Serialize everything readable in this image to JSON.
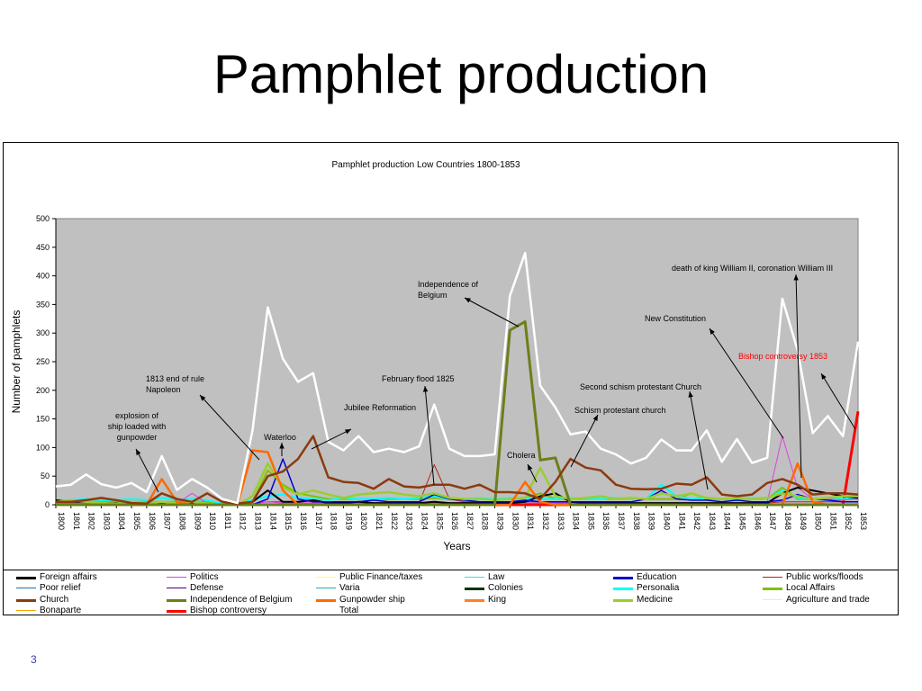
{
  "slide": {
    "title": "Pamphlet production",
    "page_number": "3"
  },
  "chart_data": {
    "type": "line",
    "title": "Pamphlet production Low Countries 1800-1853",
    "xlabel": "Years",
    "ylabel": "Number of pamphlets",
    "ylim": [
      0,
      500
    ],
    "yticks": [
      0,
      50,
      100,
      150,
      200,
      250,
      300,
      350,
      400,
      450,
      500
    ],
    "plot_background": "#c0c0c0",
    "legend_position": "bottom",
    "x": [
      1800,
      1801,
      1802,
      1803,
      1804,
      1805,
      1806,
      1807,
      1808,
      1809,
      1810,
      1811,
      1812,
      1813,
      1814,
      1815,
      1816,
      1817,
      1818,
      1819,
      1820,
      1821,
      1822,
      1823,
      1824,
      1825,
      1826,
      1827,
      1828,
      1829,
      1830,
      1831,
      1832,
      1833,
      1834,
      1835,
      1836,
      1837,
      1838,
      1839,
      1840,
      1841,
      1842,
      1843,
      1844,
      1845,
      1846,
      1847,
      1848,
      1849,
      1850,
      1851,
      1852,
      1853
    ],
    "series": [
      {
        "name": "Total",
        "color": "#ffffff",
        "width": 2.5,
        "values": [
          32,
          35,
          53,
          36,
          30,
          38,
          22,
          85,
          26,
          45,
          30,
          10,
          3,
          130,
          345,
          255,
          215,
          230,
          110,
          95,
          120,
          92,
          98,
          92,
          102,
          175,
          98,
          85,
          85,
          88,
          365,
          440,
          208,
          170,
          123,
          128,
          98,
          88,
          72,
          82,
          114,
          95,
          95,
          130,
          75,
          115,
          73,
          82,
          360,
          270,
          125,
          155,
          120,
          285
        ]
      },
      {
        "name": "Church",
        "color": "#8b3a0f",
        "width": 2.5,
        "values": [
          5,
          5,
          8,
          12,
          8,
          3,
          2,
          20,
          10,
          5,
          20,
          5,
          2,
          5,
          50,
          58,
          80,
          120,
          48,
          40,
          38,
          28,
          45,
          32,
          30,
          35,
          35,
          28,
          35,
          22,
          22,
          20,
          10,
          40,
          80,
          65,
          60,
          35,
          28,
          27,
          28,
          37,
          35,
          48,
          18,
          15,
          18,
          38,
          45,
          35,
          18,
          20,
          20,
          18
        ]
      },
      {
        "name": "Independence of Belgium",
        "color": "#6b7f1a",
        "width": 3,
        "values": [
          0,
          0,
          0,
          0,
          0,
          0,
          0,
          0,
          0,
          0,
          0,
          0,
          0,
          0,
          0,
          0,
          0,
          0,
          0,
          0,
          0,
          0,
          0,
          0,
          0,
          0,
          0,
          0,
          0,
          0,
          305,
          320,
          78,
          82,
          0,
          0,
          0,
          0,
          0,
          0,
          0,
          0,
          0,
          0,
          0,
          0,
          0,
          0,
          0,
          0,
          0,
          0,
          0,
          0
        ]
      },
      {
        "name": "Gunpowder ship",
        "color": "#ff6a00",
        "width": 2.5,
        "values": [
          0,
          0,
          0,
          0,
          0,
          0,
          0,
          45,
          5,
          0,
          0,
          0,
          0,
          95,
          92,
          25,
          0,
          0,
          0,
          0,
          0,
          0,
          0,
          0,
          0,
          0,
          0,
          0,
          0,
          0,
          0,
          40,
          5,
          0,
          0,
          0,
          0,
          0,
          0,
          0,
          0,
          0,
          0,
          0,
          0,
          0,
          0,
          0,
          0,
          72,
          5,
          0,
          0,
          0
        ]
      },
      {
        "name": "Medicine",
        "color": "#9acd32",
        "width": 2.5,
        "values": [
          5,
          8,
          5,
          3,
          2,
          5,
          3,
          5,
          3,
          5,
          2,
          0,
          0,
          15,
          72,
          30,
          18,
          25,
          18,
          12,
          18,
          20,
          22,
          18,
          15,
          20,
          12,
          10,
          10,
          8,
          10,
          12,
          65,
          15,
          10,
          12,
          15,
          10,
          12,
          10,
          20,
          15,
          20,
          12,
          10,
          12,
          10,
          12,
          20,
          15,
          10,
          12,
          15,
          15
        ]
      },
      {
        "name": "Education",
        "color": "#0000cc",
        "width": 1.5,
        "values": [
          0,
          0,
          0,
          0,
          0,
          0,
          0,
          0,
          0,
          0,
          0,
          0,
          0,
          0,
          10,
          80,
          10,
          5,
          5,
          5,
          5,
          8,
          5,
          5,
          5,
          18,
          10,
          8,
          5,
          5,
          5,
          8,
          5,
          5,
          5,
          5,
          5,
          5,
          5,
          10,
          25,
          10,
          8,
          8,
          5,
          8,
          5,
          5,
          8,
          18,
          10,
          8,
          5,
          5
        ]
      },
      {
        "name": "Foreign affairs",
        "color": "#000000",
        "width": 2,
        "values": [
          8,
          5,
          5,
          3,
          3,
          2,
          2,
          2,
          2,
          2,
          2,
          0,
          0,
          5,
          25,
          5,
          5,
          8,
          3,
          3,
          5,
          3,
          3,
          3,
          3,
          5,
          3,
          3,
          3,
          3,
          3,
          5,
          15,
          20,
          5,
          3,
          3,
          3,
          3,
          3,
          3,
          3,
          3,
          3,
          3,
          3,
          3,
          3,
          20,
          30,
          25,
          20,
          15,
          12
        ]
      },
      {
        "name": "Politics",
        "color": "#e040e0",
        "width": 1,
        "values": [
          3,
          3,
          3,
          3,
          3,
          2,
          2,
          3,
          2,
          20,
          2,
          0,
          0,
          2,
          5,
          3,
          3,
          3,
          3,
          3,
          3,
          3,
          3,
          3,
          3,
          3,
          3,
          3,
          3,
          3,
          3,
          3,
          3,
          3,
          3,
          3,
          3,
          3,
          3,
          3,
          3,
          3,
          3,
          3,
          3,
          3,
          3,
          5,
          120,
          30,
          10,
          10,
          8,
          10
        ]
      },
      {
        "name": "Public works/floods",
        "color": "#b22222",
        "width": 1,
        "values": [
          2,
          2,
          2,
          2,
          2,
          2,
          2,
          2,
          2,
          2,
          2,
          0,
          0,
          2,
          5,
          5,
          3,
          3,
          3,
          3,
          3,
          3,
          3,
          3,
          3,
          70,
          10,
          5,
          5,
          3,
          3,
          5,
          5,
          3,
          3,
          3,
          3,
          3,
          3,
          3,
          3,
          3,
          3,
          3,
          3,
          3,
          3,
          3,
          5,
          5,
          5,
          5,
          5,
          5
        ]
      },
      {
        "name": "Personalia",
        "color": "#00ffff",
        "width": 2,
        "values": [
          8,
          8,
          10,
          8,
          8,
          10,
          8,
          12,
          8,
          10,
          8,
          2,
          2,
          8,
          15,
          18,
          12,
          10,
          8,
          12,
          10,
          10,
          12,
          10,
          12,
          15,
          10,
          10,
          12,
          10,
          12,
          12,
          10,
          10,
          12,
          10,
          10,
          12,
          10,
          10,
          35,
          15,
          10,
          12,
          10,
          10,
          12,
          10,
          25,
          12,
          10,
          10,
          10,
          10
        ]
      },
      {
        "name": "Local Affairs",
        "color": "#80c000",
        "width": 2,
        "values": [
          5,
          5,
          5,
          5,
          5,
          5,
          5,
          5,
          5,
          5,
          5,
          0,
          0,
          5,
          60,
          35,
          20,
          15,
          10,
          10,
          10,
          10,
          10,
          10,
          10,
          12,
          10,
          10,
          10,
          10,
          10,
          12,
          20,
          10,
          10,
          10,
          10,
          10,
          10,
          10,
          10,
          10,
          20,
          10,
          10,
          10,
          10,
          10,
          30,
          10,
          10,
          10,
          10,
          10
        ]
      },
      {
        "name": "Bishop controversy",
        "color": "#ff0000",
        "width": 3,
        "values": [
          0,
          0,
          0,
          0,
          0,
          0,
          0,
          0,
          0,
          0,
          0,
          0,
          0,
          0,
          0,
          0,
          0,
          0,
          0,
          0,
          0,
          0,
          0,
          0,
          0,
          0,
          0,
          0,
          0,
          0,
          0,
          0,
          0,
          0,
          0,
          0,
          0,
          0,
          0,
          0,
          0,
          0,
          0,
          0,
          0,
          0,
          0,
          0,
          0,
          0,
          0,
          0,
          0,
          163
        ]
      }
    ],
    "annotations": [
      {
        "text": "explosion of\nship loaded with\ngunpowder",
        "color": "#000000"
      },
      {
        "text": "1813 end of rule\nNapoleon",
        "color": "#000000"
      },
      {
        "text": "Waterloo",
        "color": "#000000"
      },
      {
        "text": "Jubilee Reformation",
        "color": "#000000"
      },
      {
        "text": "February flood 1825",
        "color": "#000000"
      },
      {
        "text": "Independence of\nBelgium",
        "color": "#000000"
      },
      {
        "text": "Cholera",
        "color": "#000000"
      },
      {
        "text": "Schism protestant church",
        "color": "#000000"
      },
      {
        "text": "Second schism protestant Church",
        "color": "#000000"
      },
      {
        "text": "New Constitution",
        "color": "#000000"
      },
      {
        "text": "death of king William II, coronation  William III",
        "color": "#000000"
      },
      {
        "text": "Bishop controversy 1853",
        "color": "#ff0000"
      }
    ],
    "legend": [
      {
        "label": "Foreign affairs",
        "color": "#000000",
        "width": 3
      },
      {
        "label": "Politics",
        "color": "#e040e0",
        "width": 1
      },
      {
        "label": "Public Finance/taxes",
        "color": "#ffff66",
        "width": 1
      },
      {
        "label": "Law",
        "color": "#40e0d0",
        "width": 1
      },
      {
        "label": "Education",
        "color": "#0000cc",
        "width": 3
      },
      {
        "label": "Public works/floods",
        "color": "#b22222",
        "width": 1
      },
      {
        "label": "Poor relief",
        "color": "#1e6eb4",
        "width": 1
      },
      {
        "label": "Defense",
        "color": "#4b0082",
        "width": 1
      },
      {
        "label": "Varia",
        "color": "#20b2aa",
        "width": 1
      },
      {
        "label": "Colonies",
        "color": "#003300",
        "width": 3
      },
      {
        "label": "Personalia",
        "color": "#00ffff",
        "width": 3
      },
      {
        "label": "Local Affairs",
        "color": "#80c000",
        "width": 3
      },
      {
        "label": "Church",
        "color": "#8b3a0f",
        "width": 3
      },
      {
        "label": "Independence of Belgium",
        "color": "#6b7f1a",
        "width": 3
      },
      {
        "label": "Gunpowder ship",
        "color": "#ff6a00",
        "width": 3
      },
      {
        "label": "King",
        "color": "#ff7f27",
        "width": 3
      },
      {
        "label": "Medicine",
        "color": "#9acd32",
        "width": 3
      },
      {
        "label": "Agriculture and trade",
        "color": "#ffee88",
        "width": 1
      },
      {
        "label": "Bonaparte",
        "color": "#ffa500",
        "width": 1
      },
      {
        "label": "Bishop controversy",
        "color": "#ff0000",
        "width": 3
      },
      {
        "label": "Total",
        "color": "#ffffff",
        "width": 0
      }
    ]
  }
}
